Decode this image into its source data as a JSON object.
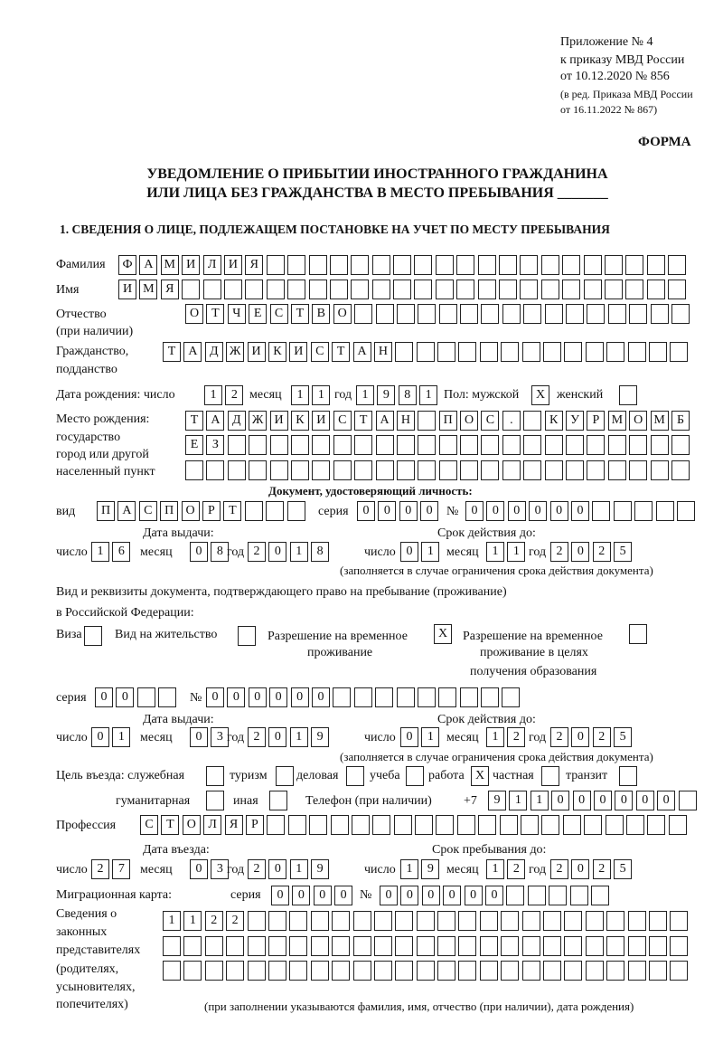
{
  "header": {
    "line1": "Приложение № 4",
    "line2": "к приказу МВД России",
    "line3": "от 10.12.2020 № 856",
    "line4": "(в ред. Приказа МВД России",
    "line5": "от 16.11.2022 № 867)",
    "forma": "ФОРМА"
  },
  "title": {
    "line1": "УВЕДОМЛЕНИЕ О ПРИБЫТИИ ИНОСТРАННОГО ГРАЖДАНИНА",
    "line2": "ИЛИ ЛИЦА БЕЗ ГРАЖДАНСТВА В МЕСТО ПРЕБЫВАНИЯ _______"
  },
  "section1": "1. СВЕДЕНИЯ О ЛИЦЕ, ПОДЛЕЖАЩЕМ ПОСТАНОВКЕ НА УЧЕТ ПО МЕСТУ ПРЕБЫВАНИЯ",
  "labels": {
    "surname": "Фамилия",
    "name": "Имя",
    "patronymic": "Отчество",
    "patronymic2": "(при наличии)",
    "citizenship": "Гражданство,",
    "citizenship2": "подданство",
    "birth_date": "Дата рождения:  число",
    "month": "месяц",
    "year": "год",
    "day": "число",
    "sex": "Пол: мужской",
    "female": "женский",
    "birthplace1": "Место рождения:",
    "birthplace2": "государство",
    "birthplace3": "город или другой",
    "birthplace4": "населенный пункт",
    "id_doc": "Документ, удостоверяющий личность:",
    "kind": "вид",
    "series": "серия",
    "number": "№",
    "issue_date": "Дата выдачи:",
    "valid_until": "Срок действия до:",
    "valid_note": "(заполняется в случае ограничения срока действия документа)",
    "right_doc1": "Вид и реквизиты документа, подтверждающего право на пребывание (проживание)",
    "right_doc2": "в Российской Федерации:",
    "visa": "Виза",
    "residence": "Вид на жительство",
    "trp1": "Разрешение на временное",
    "trp2": "проживание",
    "trpe1": "Разрешение на временное",
    "trpe2": "проживание в целях",
    "trpe3": "получения образования",
    "purpose": "Цель въезда: служебная",
    "tourism": "туризм",
    "business": "деловая",
    "study": "учеба",
    "work": "работа",
    "private": "частная",
    "transit": "транзит",
    "humanitarian": "гуманитарная",
    "other": "иная",
    "phone": "Телефон (при наличии)",
    "phone_prefix": "+7",
    "profession": "Профессия",
    "entry_date": "Дата въезда:",
    "stay_until": "Срок пребывания до:",
    "migration_card": "Миграционная карта:",
    "reps1": "Сведения о",
    "reps2": "законных",
    "reps3": "представителях",
    "reps4": "(родителях,",
    "reps5": "усыновителях,",
    "reps6": "попечителях)",
    "reps_note": "(при заполнении указываются фамилия, имя, отчество (при наличии), дата рождения)"
  },
  "person": {
    "surname": "ФАМИЛИЯ",
    "name": "ИМЯ",
    "patronymic": "ОТЧЕСТВО",
    "citizenship": "ТАДЖИКИСТАН",
    "birth_day": "12",
    "birth_month": "11",
    "birth_year": "1981",
    "male": "X",
    "female": "",
    "birthplace_1": "ТАДЖИКИСТАН ПОС. КУРМОМБ",
    "birthplace_2": "ЕЗ",
    "birthplace_3": ""
  },
  "id_document": {
    "kind": "ПАСПОРТ",
    "series": "0000",
    "number": "000000",
    "issue_day": "16",
    "issue_month": "08",
    "issue_year": "2018",
    "valid_day": "01",
    "valid_month": "11",
    "valid_year": "2025"
  },
  "right_document": {
    "visa": "",
    "residence": "",
    "trp": "X",
    "trpe": "",
    "series": "00",
    "number": "000000",
    "issue_day": "01",
    "issue_month": "03",
    "issue_year": "2019",
    "valid_day": "01",
    "valid_month": "12",
    "valid_year": "2025"
  },
  "purpose": {
    "official": "",
    "tourism": "",
    "business": "",
    "study": "",
    "work": "X",
    "private": "",
    "transit": "",
    "humanitarian": "",
    "other": ""
  },
  "phone": "911000000",
  "profession": "СТОЛЯР",
  "entry": {
    "day": "27",
    "month": "03",
    "year": "2019",
    "stay_day": "19",
    "stay_month": "12",
    "stay_year": "2025"
  },
  "migration_card": {
    "series": "0000",
    "number": "000000"
  },
  "representatives": {
    "line1": "1122",
    "line2": "",
    "line3": ""
  }
}
